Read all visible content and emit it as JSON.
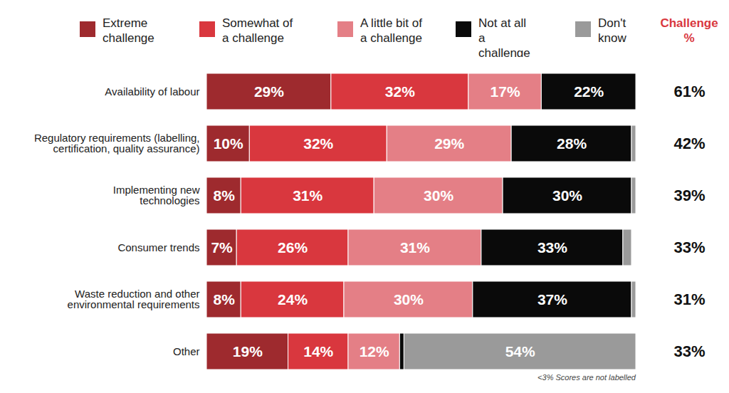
{
  "chart_data": {
    "type": "bar",
    "orientation": "horizontal",
    "stacked": true,
    "data_labels": true,
    "tick_labels": "y",
    "categories": [
      "Availability of labour",
      "Regulatory requirements (labelling,\ncertification, quality assurance)",
      "Implementing new\ntechnologies",
      "Consumer trends",
      "Waste reduction and other\nenvironmental requirements",
      "Other"
    ],
    "xlim": [
      0,
      100
    ],
    "series": [
      {
        "name": "Extreme challenge",
        "color": "#9e2a2e",
        "values": [
          29,
          10,
          8,
          7,
          8,
          19
        ],
        "value_labels": [
          "29%",
          "10%",
          "8%",
          "7%",
          "8%",
          "19%"
        ]
      },
      {
        "name": "Somewhat of a challenge",
        "color": "#d9373e",
        "values": [
          32,
          32,
          31,
          26,
          24,
          14
        ],
        "value_labels": [
          "32%",
          "32%",
          "31%",
          "26%",
          "24%",
          "14%"
        ]
      },
      {
        "name": "A little bit of a challenge",
        "color": "#e47f86",
        "values": [
          17,
          29,
          30,
          31,
          30,
          12
        ],
        "value_labels": [
          "17%",
          "29%",
          "30%",
          "31%",
          "30%",
          "12%"
        ]
      },
      {
        "name": "Not at all a challenge",
        "color": "#0a0a0a",
        "values": [
          22,
          28,
          30,
          33,
          37,
          1
        ],
        "value_labels": [
          "22%",
          "28%",
          "30%",
          "33%",
          "37%",
          null
        ]
      },
      {
        "name": "Don't know",
        "color": "#9a9a9a",
        "values": [
          0,
          1,
          1,
          2,
          1,
          54
        ],
        "value_labels": [
          null,
          null,
          null,
          null,
          null,
          "54%"
        ]
      }
    ],
    "challenge_title": "Challenge %",
    "challenge_labels": [
      "61%",
      "42%",
      "39%",
      "33%",
      "31%",
      "33%"
    ],
    "note": "<3% Scores are not labelled"
  }
}
